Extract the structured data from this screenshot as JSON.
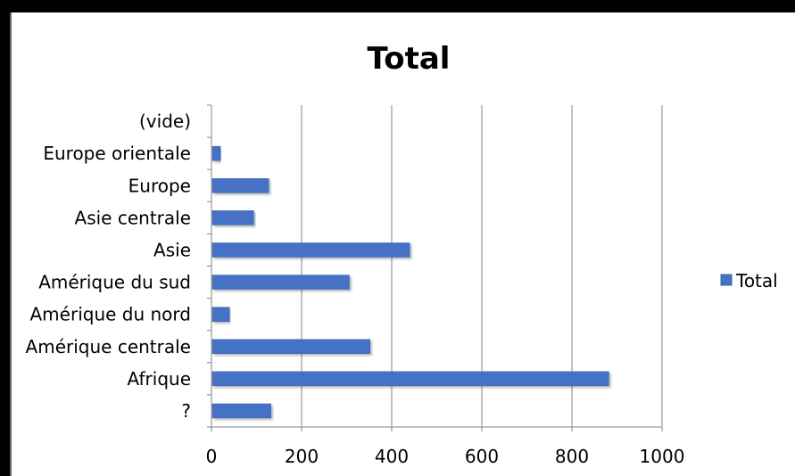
{
  "chart_data": {
    "type": "bar",
    "orientation": "horizontal",
    "title": "Total",
    "categories": [
      "(vide)",
      "Europe orientale",
      "Europe",
      "Asie centrale",
      "Asie",
      "Amérique du sud",
      "Amérique du nord",
      "Amérique centrale",
      "Afrique",
      "?"
    ],
    "series": [
      {
        "name": "Total",
        "values": [
          0,
          18,
          125,
          92,
          438,
          304,
          38,
          350,
          880,
          130
        ]
      }
    ],
    "xlim": [
      0,
      1000
    ],
    "xticks": [
      "0",
      "200",
      "400",
      "600",
      "800",
      "1000"
    ],
    "grid": true,
    "legend_position": "right",
    "colors": {
      "bar": "#4472c4",
      "bar_edge": "#3a63ad",
      "grid": "#868686",
      "axis": "#868686"
    }
  }
}
